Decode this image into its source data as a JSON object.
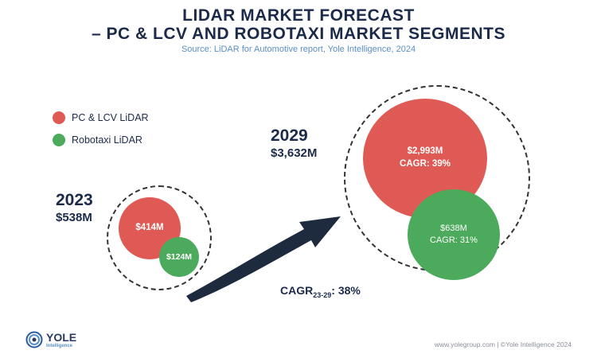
{
  "header": {
    "title_line1": "LIDAR MARKET FORECAST",
    "title_line2": "– PC & LCV AND ROBOTAXI MARKET SEGMENTS",
    "source": "Source: LiDAR for Automotive report, Yole Intelligence, 2024"
  },
  "legend": [
    {
      "label": "PC & LCV LiDAR",
      "color": "#e05a55"
    },
    {
      "label": "Robotaxi LiDAR",
      "color": "#4caa5c"
    }
  ],
  "colors": {
    "pc_lcv": "#e05a55",
    "robotaxi": "#4caa5c",
    "arrow": "#1e2a3d"
  },
  "chart_data": {
    "type": "bubble",
    "units": "$M",
    "series": [
      {
        "name": "PC & LCV LiDAR",
        "values": [
          414,
          2993
        ],
        "labels": [
          "$414M",
          "$2,993M"
        ],
        "cagr": [
          null,
          "CAGR: 39%"
        ]
      },
      {
        "name": "Robotaxi LiDAR",
        "values": [
          124,
          638
        ],
        "labels": [
          "$124M",
          "$638M"
        ],
        "cagr": [
          null,
          "CAGR: 31%"
        ]
      }
    ],
    "years": [
      "2023",
      "2029"
    ],
    "totals": [
      538,
      3632
    ],
    "total_labels": [
      "$538M",
      "$3,632M"
    ],
    "cagr_overall": {
      "prefix": "CAGR",
      "subscript": "23-29",
      "suffix": ": 38%"
    }
  },
  "footer": {
    "logo_text": "YOLE",
    "logo_sub": "Intelligence",
    "credits": "www.yolegroup.com | ©Yole Intelligence 2024"
  }
}
